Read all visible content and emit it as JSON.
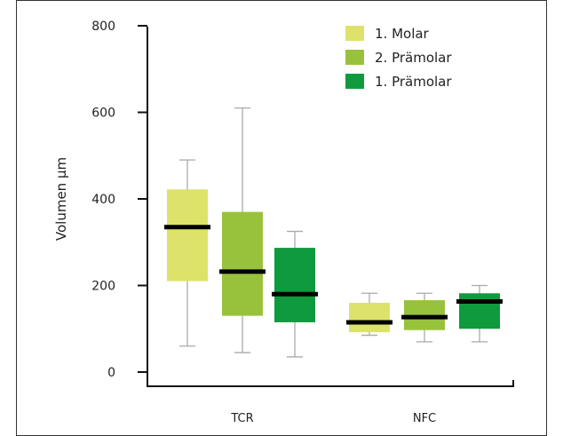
{
  "chart_data": {
    "type": "box",
    "ylabel": "Volumen µm",
    "xlabel": "",
    "ylim": [
      0,
      800
    ],
    "yticks": [
      0,
      200,
      400,
      600,
      800
    ],
    "categories": [
      "TCR",
      "NFC"
    ],
    "legend_position": "top-right",
    "grid": false,
    "series": [
      {
        "name": "1. Molar",
        "color": "#dde36a",
        "boxes": [
          {
            "min": 60,
            "q1": 210,
            "median": 335,
            "q3": 422,
            "max": 490
          },
          {
            "min": 85,
            "q1": 92,
            "median": 115,
            "q3": 160,
            "max": 182
          }
        ]
      },
      {
        "name": "2. Prämolar",
        "color": "#99c23c",
        "boxes": [
          {
            "min": 45,
            "q1": 130,
            "median": 232,
            "q3": 370,
            "max": 610
          },
          {
            "min": 70,
            "q1": 97,
            "median": 127,
            "q3": 166,
            "max": 182
          }
        ]
      },
      {
        "name": "1. Prämolar",
        "color": "#109a3e",
        "boxes": [
          {
            "min": 35,
            "q1": 115,
            "median": 180,
            "q3": 287,
            "max": 325
          },
          {
            "min": 70,
            "q1": 100,
            "median": 163,
            "q3": 182,
            "max": 200
          }
        ]
      }
    ]
  }
}
